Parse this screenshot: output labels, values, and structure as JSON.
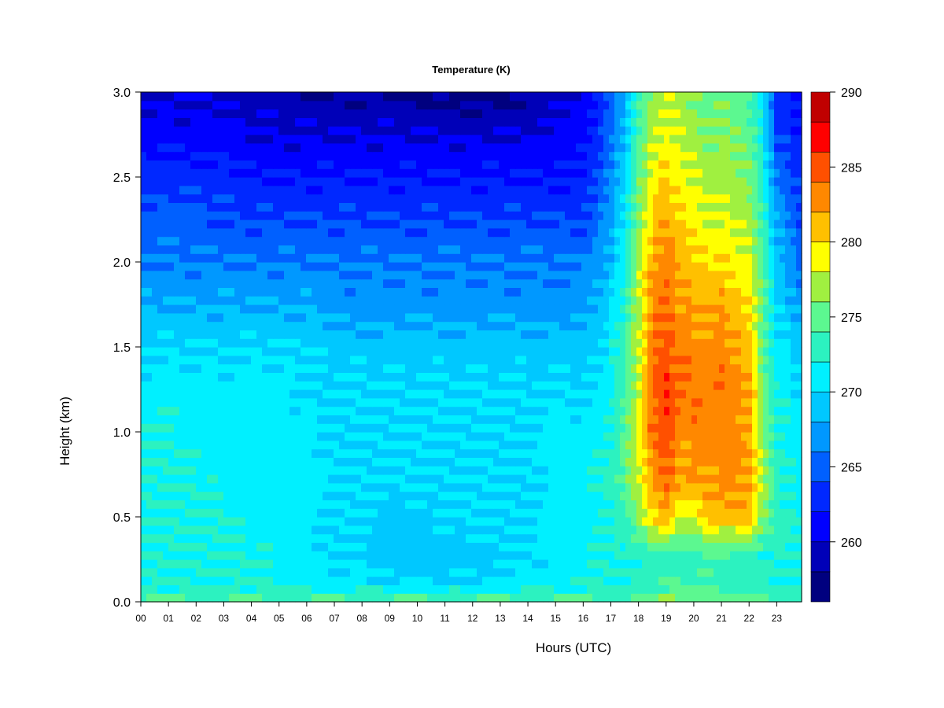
{
  "chart_data": {
    "type": "heatmap",
    "title": "Temperature (K)",
    "xlabel": "Hours (UTC)",
    "ylabel": "Height (km)",
    "xlim": [
      0,
      23.9
    ],
    "ylim": [
      0,
      3.0
    ],
    "x_ticks": [
      0,
      1,
      2,
      3,
      4,
      5,
      6,
      7,
      8,
      9,
      10,
      11,
      12,
      13,
      14,
      15,
      16,
      17,
      18,
      19,
      20,
      21,
      22,
      23
    ],
    "x_tick_labels": [
      "00",
      "01",
      "02",
      "03",
      "04",
      "05",
      "06",
      "07",
      "08",
      "09",
      "10",
      "11",
      "12",
      "13",
      "14",
      "15",
      "16",
      "17",
      "18",
      "19",
      "20",
      "21",
      "22",
      "23"
    ],
    "y_ticks": [
      0.0,
      0.5,
      1.0,
      1.5,
      2.0,
      2.5,
      3.0
    ],
    "y_tick_labels": [
      "0.0",
      "0.5",
      "1.0",
      "1.5",
      "2.0",
      "2.5",
      "3.0"
    ],
    "colorbar": {
      "range": [
        256,
        290
      ],
      "levels": [
        256,
        258,
        260,
        262,
        264,
        266,
        268,
        270,
        272,
        274,
        276,
        278,
        280,
        282,
        284,
        286,
        288,
        290
      ],
      "colors": [
        "#00007f",
        "#0000b8",
        "#0000ff",
        "#0028ff",
        "#0060ff",
        "#0098ff",
        "#00c8ff",
        "#00f0ff",
        "#2cf2c0",
        "#5cf890",
        "#a0f040",
        "#ffff00",
        "#ffc000",
        "#ff8800",
        "#ff5000",
        "#ff0000",
        "#c00000",
        "#800000"
      ],
      "tick_values": [
        260,
        265,
        270,
        275,
        280,
        285,
        290
      ],
      "tick_labels": [
        "260",
        "265",
        "270",
        "275",
        "280",
        "285",
        "290"
      ]
    },
    "heights_km": [
      0.02,
      0.1,
      0.25,
      0.5,
      0.7,
      1.0,
      1.25,
      1.5,
      1.75,
      2.0,
      2.25,
      2.5,
      2.75,
      3.0
    ],
    "hours": [
      0,
      1,
      2,
      3,
      4,
      5,
      6,
      7,
      8,
      9,
      10,
      11,
      12,
      13,
      14,
      15,
      16,
      16.7,
      17.4,
      18.0,
      18.5,
      19.0,
      19.5,
      20.0,
      20.5,
      21.0,
      21.5,
      22.0,
      22.5,
      23.0,
      23.9
    ],
    "temperature_K": [
      [
        274,
        274,
        274,
        274,
        274,
        274,
        274,
        274,
        274,
        274,
        274,
        274,
        274,
        274,
        274,
        274,
        274,
        274,
        274,
        275,
        275,
        276,
        276,
        275,
        275,
        275,
        275,
        275,
        275,
        274,
        274
      ],
      [
        272,
        272,
        272,
        272,
        272,
        272,
        271,
        271,
        271,
        270,
        270,
        270,
        270,
        270,
        271,
        271,
        272,
        272,
        272,
        273,
        273,
        274,
        274,
        274,
        274,
        273,
        273,
        273,
        273,
        272,
        272
      ],
      [
        272,
        272,
        272,
        272,
        272,
        271,
        271,
        270,
        270,
        269,
        269,
        269,
        269,
        270,
        270,
        271,
        271,
        272,
        272,
        272,
        273,
        273,
        273,
        273,
        273,
        273,
        273,
        273,
        272,
        272,
        272
      ],
      [
        272,
        272,
        272,
        272,
        271,
        271,
        271,
        270,
        270,
        269,
        269,
        270,
        270,
        270,
        270,
        271,
        271,
        272,
        273,
        276,
        280,
        281,
        278,
        278,
        281,
        281,
        281,
        281,
        276,
        273,
        272
      ],
      [
        272,
        272,
        272,
        271,
        271,
        271,
        271,
        270,
        270,
        270,
        270,
        270,
        270,
        270,
        270,
        271,
        271,
        272,
        274,
        278,
        282,
        284,
        282,
        282,
        282,
        283,
        282,
        282,
        277,
        273,
        271
      ],
      [
        272,
        272,
        271,
        271,
        271,
        271,
        271,
        270,
        270,
        270,
        270,
        270,
        270,
        270,
        270,
        271,
        271,
        271,
        274,
        279,
        284,
        285,
        283,
        283,
        283,
        283,
        283,
        282,
        276,
        272,
        271
      ],
      [
        271,
        271,
        271,
        271,
        271,
        271,
        270,
        270,
        270,
        270,
        270,
        270,
        270,
        270,
        270,
        270,
        270,
        271,
        273,
        278,
        284,
        286,
        284,
        284,
        283,
        284,
        283,
        282,
        276,
        272,
        270
      ],
      [
        270,
        270,
        270,
        270,
        270,
        270,
        270,
        269,
        269,
        269,
        269,
        269,
        269,
        269,
        269,
        269,
        269,
        270,
        273,
        278,
        284,
        285,
        283,
        283,
        282,
        283,
        282,
        281,
        275,
        271,
        269
      ],
      [
        268,
        268,
        268,
        268,
        268,
        268,
        268,
        267,
        267,
        267,
        267,
        267,
        267,
        267,
        267,
        267,
        267,
        269,
        272,
        277,
        283,
        284,
        282,
        282,
        281,
        282,
        281,
        280,
        275,
        270,
        267
      ],
      [
        266,
        266,
        266,
        266,
        266,
        266,
        266,
        266,
        266,
        266,
        266,
        266,
        266,
        266,
        266,
        266,
        266,
        267,
        271,
        277,
        282,
        284,
        281,
        281,
        280,
        280,
        279,
        278,
        274,
        269,
        265
      ],
      [
        265,
        265,
        265,
        264,
        264,
        264,
        264,
        264,
        264,
        264,
        264,
        264,
        264,
        264,
        264,
        264,
        264,
        266,
        270,
        276,
        280,
        282,
        280,
        279,
        278,
        278,
        278,
        277,
        273,
        268,
        264
      ],
      [
        263,
        263,
        263,
        263,
        262,
        262,
        262,
        262,
        262,
        262,
        262,
        262,
        262,
        262,
        262,
        262,
        262,
        265,
        269,
        275,
        279,
        280,
        279,
        278,
        277,
        277,
        277,
        276,
        272,
        266,
        263
      ],
      [
        261,
        261,
        261,
        261,
        260,
        260,
        260,
        260,
        260,
        260,
        260,
        260,
        260,
        260,
        260,
        261,
        261,
        264,
        268,
        274,
        278,
        279,
        278,
        277,
        276,
        276,
        276,
        275,
        271,
        264,
        262
      ],
      [
        260,
        260,
        260,
        259,
        259,
        259,
        258,
        258,
        258,
        258,
        257,
        257,
        257,
        257,
        258,
        259,
        260,
        263,
        267,
        273,
        277,
        278,
        277,
        276,
        275,
        275,
        275,
        274,
        270,
        263,
        261
      ]
    ]
  }
}
